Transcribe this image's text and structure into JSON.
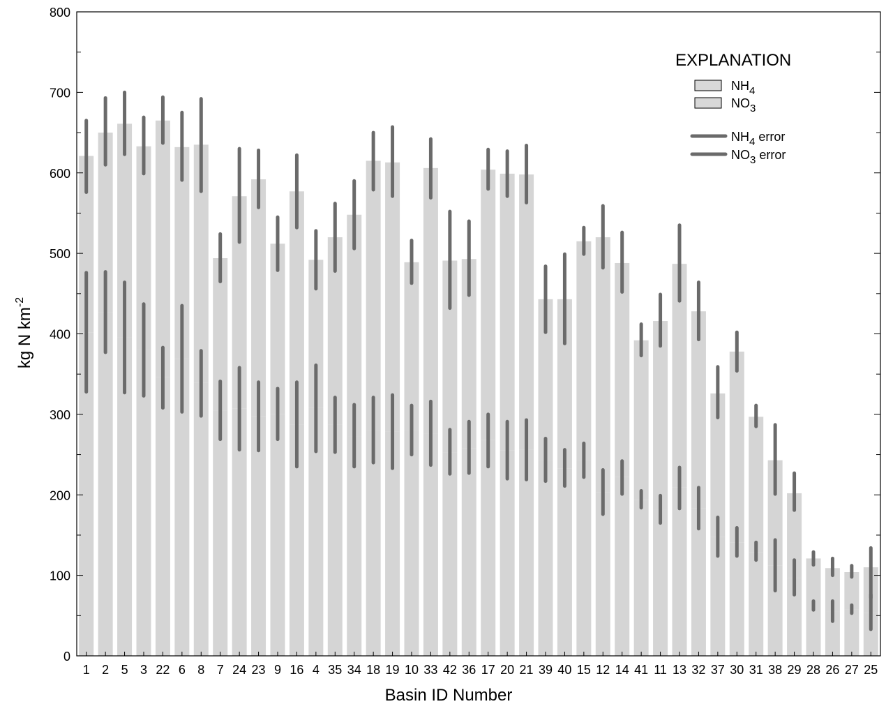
{
  "chart_data": {
    "type": "bar",
    "stacked": true,
    "xlabel": "Basin ID Number",
    "ylabel_main": "kg N km",
    "ylabel_sup": "-2",
    "ylim": [
      0,
      800
    ],
    "yticks": [
      0,
      100,
      200,
      300,
      400,
      500,
      600,
      700,
      800
    ],
    "yminor_step": 50,
    "categories": [
      "1",
      "2",
      "5",
      "3",
      "22",
      "6",
      "8",
      "7",
      "24",
      "23",
      "9",
      "16",
      "4",
      "35",
      "34",
      "18",
      "19",
      "10",
      "33",
      "42",
      "36",
      "17",
      "20",
      "21",
      "39",
      "40",
      "15",
      "12",
      "14",
      "41",
      "11",
      "13",
      "32",
      "37",
      "30",
      "31",
      "38",
      "29",
      "28",
      "26",
      "27",
      "25"
    ],
    "series": [
      {
        "name": "NH4",
        "values": [
          402,
          427,
          396,
          380,
          346,
          369,
          339,
          305,
          307,
          298,
          300,
          287,
          308,
          287,
          273,
          280,
          279,
          280,
          276,
          253,
          258,
          268,
          255,
          256,
          243,
          233,
          243,
          203,
          222,
          194,
          182,
          209,
          183,
          148,
          141,
          129,
          112,
          97,
          62,
          55,
          58,
          53
        ]
      },
      {
        "name": "NO3",
        "values": [
          219,
          223,
          265,
          253,
          319,
          263,
          296,
          189,
          264,
          294,
          212,
          290,
          184,
          233,
          275,
          335,
          334,
          209,
          330,
          238,
          235,
          336,
          344,
          342,
          200,
          210,
          272,
          317,
          266,
          198,
          234,
          278,
          245,
          178,
          237,
          168,
          131,
          105,
          59,
          54,
          46,
          57
        ]
      }
    ],
    "error_bars": {
      "NH4": [
        [
          328,
          476
        ],
        [
          377,
          477
        ],
        [
          327,
          464
        ],
        [
          323,
          437
        ],
        [
          308,
          383
        ],
        [
          303,
          435
        ],
        [
          298,
          379
        ],
        [
          269,
          341
        ],
        [
          256,
          358
        ],
        [
          255,
          340
        ],
        [
          269,
          332
        ],
        [
          235,
          340
        ],
        [
          254,
          361
        ],
        [
          253,
          321
        ],
        [
          235,
          312
        ],
        [
          240,
          321
        ],
        [
          233,
          324
        ],
        [
          250,
          311
        ],
        [
          237,
          316
        ],
        [
          226,
          281
        ],
        [
          227,
          291
        ],
        [
          235,
          300
        ],
        [
          220,
          291
        ],
        [
          219,
          293
        ],
        [
          217,
          270
        ],
        [
          211,
          256
        ],
        [
          222,
          264
        ],
        [
          176,
          231
        ],
        [
          201,
          242
        ],
        [
          184,
          205
        ],
        [
          165,
          199
        ],
        [
          183,
          234
        ],
        [
          158,
          209
        ],
        [
          124,
          172
        ],
        [
          124,
          159
        ],
        [
          119,
          141
        ],
        [
          81,
          144
        ],
        [
          76,
          119
        ],
        [
          57,
          68
        ],
        [
          43,
          68
        ],
        [
          53,
          63
        ],
        [
          33,
          76
        ]
      ],
      "NO3": [
        [
          576,
          665
        ],
        [
          610,
          693
        ],
        [
          623,
          700
        ],
        [
          599,
          669
        ],
        [
          637,
          694
        ],
        [
          591,
          675
        ],
        [
          577,
          692
        ],
        [
          465,
          524
        ],
        [
          514,
          630
        ],
        [
          557,
          628
        ],
        [
          479,
          545
        ],
        [
          532,
          622
        ],
        [
          456,
          528
        ],
        [
          478,
          562
        ],
        [
          506,
          590
        ],
        [
          579,
          650
        ],
        [
          571,
          657
        ],
        [
          463,
          516
        ],
        [
          569,
          642
        ],
        [
          432,
          552
        ],
        [
          448,
          540
        ],
        [
          580,
          629
        ],
        [
          571,
          627
        ],
        [
          563,
          634
        ],
        [
          402,
          484
        ],
        [
          388,
          499
        ],
        [
          499,
          532
        ],
        [
          482,
          559
        ],
        [
          452,
          526
        ],
        [
          373,
          412
        ],
        [
          385,
          449
        ],
        [
          441,
          535
        ],
        [
          393,
          464
        ],
        [
          296,
          359
        ],
        [
          354,
          402
        ],
        [
          285,
          311
        ],
        [
          201,
          287
        ],
        [
          181,
          227
        ],
        [
          113,
          129
        ],
        [
          100,
          121
        ],
        [
          98,
          112
        ],
        [
          72,
          134
        ]
      ]
    },
    "legend": {
      "title": "EXPLANATION",
      "items": [
        {
          "kind": "box",
          "label": "NH",
          "sub": "4",
          "suffix": ""
        },
        {
          "kind": "box",
          "label": "NO",
          "sub": "3",
          "suffix": ""
        },
        {
          "kind": "line",
          "label": "NH",
          "sub": "4",
          "suffix": " error"
        },
        {
          "kind": "line",
          "label": "NO",
          "sub": "3",
          "suffix": " error"
        }
      ],
      "position": "top-right"
    },
    "colors": {
      "bar": "#d5d5d5",
      "error": "#6a6a6a",
      "axis": "#000000",
      "legend_box": "#d8d8d8"
    },
    "grid": false
  }
}
